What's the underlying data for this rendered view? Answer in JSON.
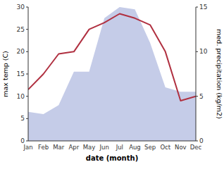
{
  "chart_data": {
    "type": "line",
    "categories": [
      "Jan",
      "Feb",
      "Mar",
      "Apr",
      "May",
      "Jun",
      "Jul",
      "Aug",
      "Sep",
      "Oct",
      "Nov",
      "Dec"
    ],
    "series": [
      {
        "type": "area",
        "color": "#c5cce8",
        "values": [
          6.5,
          6.0,
          8.0,
          15.5,
          15.5,
          27.5,
          30.0,
          29.5,
          22.0,
          12.0,
          11.0,
          11.0
        ]
      },
      {
        "type": "line",
        "color": "#b03040",
        "values": [
          11.5,
          15.0,
          19.5,
          20.0,
          25.0,
          26.5,
          28.5,
          27.5,
          26.0,
          20.0,
          9.0,
          10.0
        ]
      }
    ],
    "xlabel": "date (month)",
    "ylabel": "max temp (C)",
    "y2label": "med. precipitation (kg/m2)",
    "ylim": [
      0,
      30
    ],
    "yticks": [
      0,
      5,
      10,
      15,
      20,
      25,
      30
    ],
    "y2lim": [
      0,
      15
    ],
    "y2ticks": [
      0,
      5,
      10,
      15
    ],
    "grid": false
  }
}
